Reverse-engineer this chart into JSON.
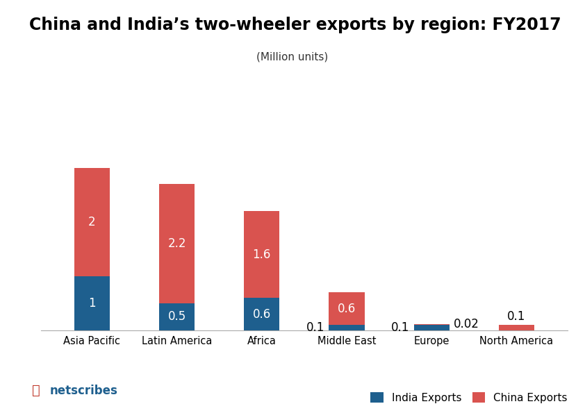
{
  "title": "China and India’s two-wheeler exports by region: FY2017",
  "subtitle": "(Million units)",
  "categories": [
    "Asia Pacific",
    "Latin America",
    "Africa",
    "Middle East",
    "Europe",
    "North America"
  ],
  "india_exports": [
    1.0,
    0.5,
    0.6,
    0.1,
    0.1,
    0.0
  ],
  "china_exports": [
    2.0,
    2.2,
    1.6,
    0.6,
    0.02,
    0.1
  ],
  "india_color": "#1e5f8e",
  "china_color": "#d9534f",
  "india_label": "India Exports",
  "china_label": "China Exports",
  "bar_width": 0.42,
  "ylim": [
    0,
    4.8
  ],
  "background_color": "#ffffff",
  "title_fontsize": 17,
  "subtitle_fontsize": 11,
  "label_fontsize": 12,
  "tick_fontsize": 10.5,
  "legend_fontsize": 11
}
